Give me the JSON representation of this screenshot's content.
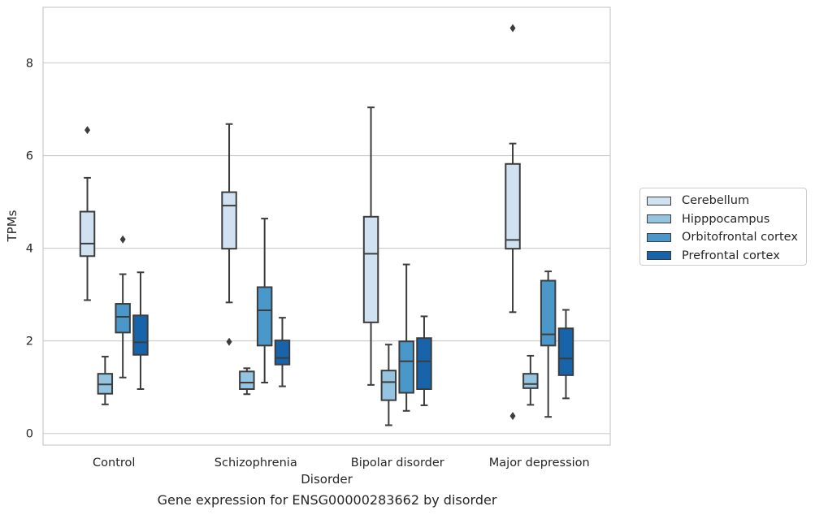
{
  "caption": "Gene expression for ENSG00000283662 by disorder",
  "legend": {
    "position": "right",
    "items": [
      {
        "label": "Cerebellum",
        "color": "#d0e1f2"
      },
      {
        "label": "Hipppocampus",
        "color": "#94c4df"
      },
      {
        "label": "Orbitofrontal cortex",
        "color": "#4a98c9"
      },
      {
        "label": "Prefrontal cortex",
        "color": "#1764ab"
      }
    ]
  },
  "chart_data": {
    "type": "box",
    "xlabel": "Disorder",
    "ylabel": "TPMs",
    "ylim": [
      -0.25,
      9.2
    ],
    "yticks": [
      0,
      2,
      4,
      6,
      8
    ],
    "grid": "horizontal",
    "categories": [
      "Control",
      "Schizophrenia",
      "Bipolar disorder",
      "Major depression"
    ],
    "series": [
      {
        "name": "Cerebellum",
        "color": "#d0e1f2",
        "boxes": [
          {
            "whislo": 2.88,
            "q1": 3.83,
            "med": 4.1,
            "q3": 4.79,
            "whishi": 5.52,
            "fliers": [
              6.55
            ]
          },
          {
            "whislo": 2.83,
            "q1": 3.99,
            "med": 4.92,
            "q3": 5.21,
            "whishi": 6.68,
            "fliers": [
              1.98
            ]
          },
          {
            "whislo": 1.05,
            "q1": 2.4,
            "med": 3.88,
            "q3": 4.68,
            "whishi": 7.04,
            "fliers": []
          },
          {
            "whislo": 2.62,
            "q1": 3.99,
            "med": 4.18,
            "q3": 5.82,
            "whishi": 6.26,
            "fliers": [
              8.75,
              0.38
            ]
          }
        ]
      },
      {
        "name": "Hipppocampus",
        "color": "#94c4df",
        "boxes": [
          {
            "whislo": 0.63,
            "q1": 0.86,
            "med": 1.06,
            "q3": 1.29,
            "whishi": 1.66,
            "fliers": []
          },
          {
            "whislo": 0.85,
            "q1": 0.96,
            "med": 1.1,
            "q3": 1.34,
            "whishi": 1.41,
            "fliers": []
          },
          {
            "whislo": 0.18,
            "q1": 0.72,
            "med": 1.11,
            "q3": 1.36,
            "whishi": 1.92,
            "fliers": []
          },
          {
            "whislo": 0.62,
            "q1": 0.98,
            "med": 1.07,
            "q3": 1.29,
            "whishi": 1.68,
            "fliers": []
          }
        ]
      },
      {
        "name": "Orbitofrontal cortex",
        "color": "#4a98c9",
        "boxes": [
          {
            "whislo": 1.21,
            "q1": 2.18,
            "med": 2.52,
            "q3": 2.8,
            "whishi": 3.44,
            "fliers": [
              4.19
            ]
          },
          {
            "whislo": 1.1,
            "q1": 1.9,
            "med": 2.66,
            "q3": 3.16,
            "whishi": 4.64,
            "fliers": []
          },
          {
            "whislo": 0.49,
            "q1": 0.88,
            "med": 1.56,
            "q3": 1.99,
            "whishi": 3.65,
            "fliers": []
          },
          {
            "whislo": 0.36,
            "q1": 1.9,
            "med": 2.14,
            "q3": 3.3,
            "whishi": 3.5,
            "fliers": []
          }
        ]
      },
      {
        "name": "Prefrontal cortex",
        "color": "#1764ab",
        "boxes": [
          {
            "whislo": 0.96,
            "q1": 1.7,
            "med": 1.97,
            "q3": 2.55,
            "whishi": 3.48,
            "fliers": []
          },
          {
            "whislo": 1.02,
            "q1": 1.49,
            "med": 1.63,
            "q3": 2.01,
            "whishi": 2.5,
            "fliers": []
          },
          {
            "whislo": 0.61,
            "q1": 0.96,
            "med": 1.56,
            "q3": 2.06,
            "whishi": 2.53,
            "fliers": []
          },
          {
            "whislo": 0.76,
            "q1": 1.26,
            "med": 1.62,
            "q3": 2.27,
            "whishi": 2.67,
            "fliers": []
          }
        ]
      }
    ]
  }
}
